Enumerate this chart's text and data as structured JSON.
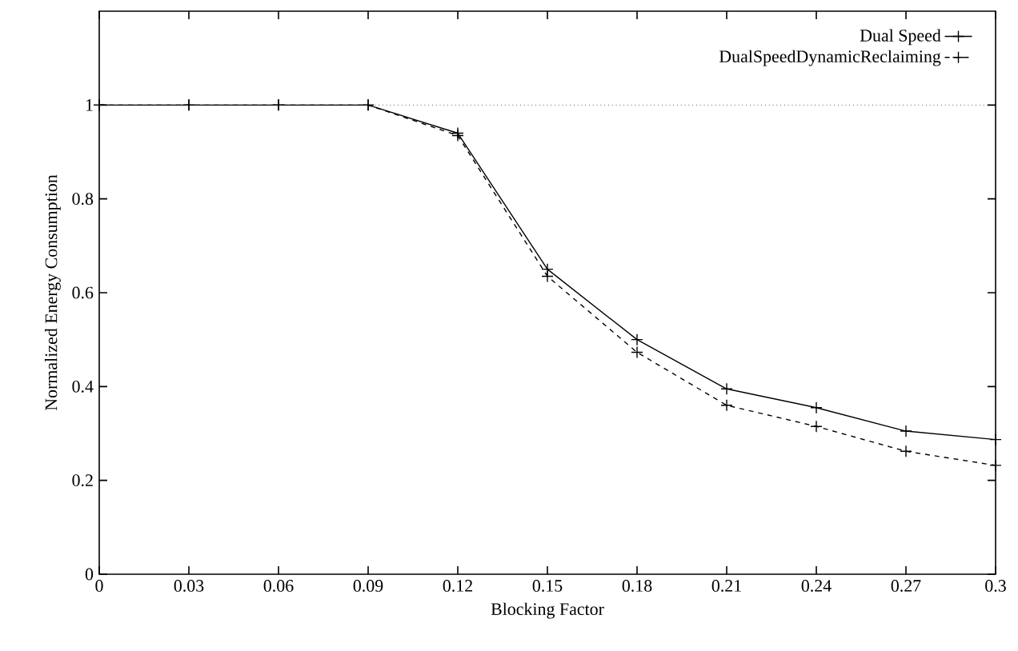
{
  "chart_data": {
    "type": "line",
    "xlabel": "Blocking Factor",
    "ylabel": "Normalized Energy Consumption",
    "x": [
      0,
      0.03,
      0.06,
      0.09,
      0.12,
      0.15,
      0.18,
      0.21,
      0.24,
      0.27,
      0.3
    ],
    "series": [
      {
        "name": "Dual Speed",
        "color": "#000000",
        "marker": "cross",
        "line_style": "solid",
        "values": [
          1,
          1,
          1,
          1,
          0.94,
          0.65,
          0.5,
          0.395,
          0.355,
          0.305,
          0.287
        ]
      },
      {
        "name": "DualSpeedDynamicReclaiming",
        "color": "#000000",
        "marker": "cross",
        "line_style": "dashed",
        "values": [
          1,
          1,
          1,
          1,
          0.935,
          0.635,
          0.473,
          0.36,
          0.315,
          0.262,
          0.232
        ]
      }
    ],
    "ref_lines": [
      {
        "axis": "y",
        "value": 1,
        "color": "#000000",
        "line_style": "dotted"
      }
    ],
    "xlim": [
      0,
      0.3
    ],
    "ylim": [
      0,
      1.2
    ],
    "xticks": [
      0,
      0.03,
      0.06,
      0.09,
      0.12,
      0.15,
      0.18,
      0.21,
      0.24,
      0.27,
      0.3
    ],
    "yticks": [
      0,
      0.2,
      0.4,
      0.6,
      0.8,
      1
    ],
    "legend": "top right",
    "grid": false
  }
}
